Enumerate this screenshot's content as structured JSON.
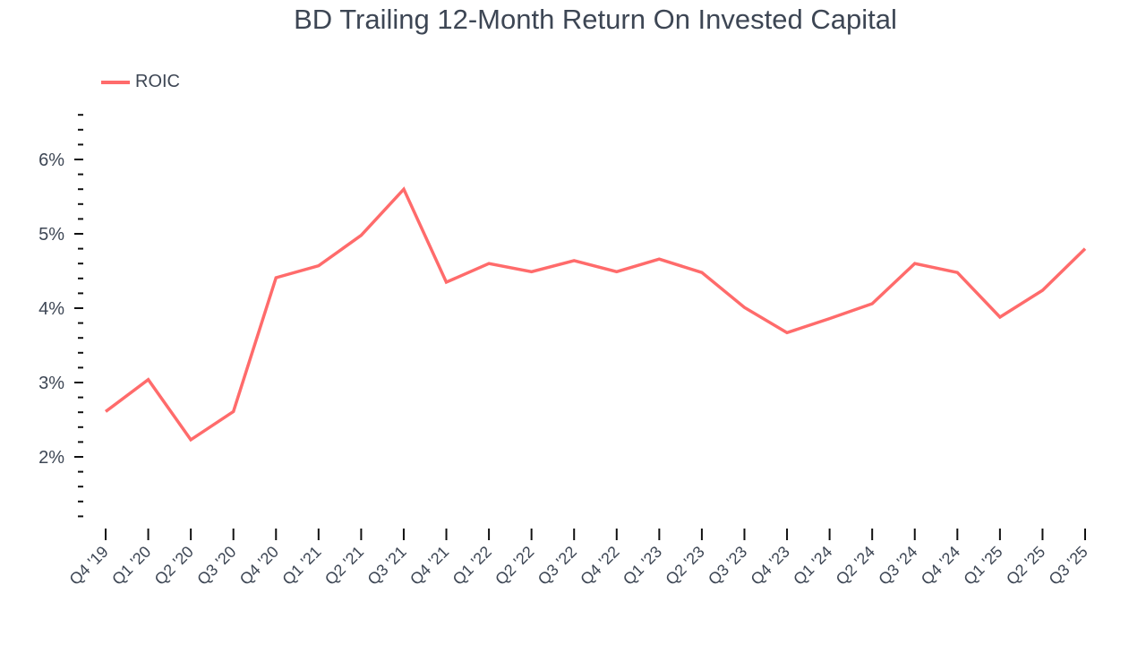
{
  "title": "BD Trailing 12-Month Return On Invested Capital",
  "legend": {
    "label": "ROIC",
    "color": "#ff6b6b"
  },
  "chart_data": {
    "type": "line",
    "title": "BD Trailing 12-Month Return On Invested Capital",
    "xlabel": "",
    "ylabel": "",
    "ylim": [
      1.2,
      6.6
    ],
    "yticks": [
      "2%",
      "3%",
      "4%",
      "5%",
      "6%"
    ],
    "grid": false,
    "legend_position": "top-left",
    "categories": [
      "Q4 '19",
      "Q1 '20",
      "Q2 '20",
      "Q3 '20",
      "Q4 '20",
      "Q1 '21",
      "Q2 '21",
      "Q3 '21",
      "Q4 '21",
      "Q1 '22",
      "Q2 '22",
      "Q3 '22",
      "Q4 '22",
      "Q1 '23",
      "Q2 '23",
      "Q3 '23",
      "Q4 '23",
      "Q1 '24",
      "Q2 '24",
      "Q3 '24",
      "Q4 '24",
      "Q1 '25",
      "Q2 '25",
      "Q3 '25"
    ],
    "series": [
      {
        "name": "ROIC",
        "color": "#ff6b6b",
        "values": [
          2.61,
          3.04,
          2.23,
          2.61,
          4.41,
          4.57,
          4.98,
          5.6,
          4.35,
          4.6,
          4.49,
          4.64,
          4.49,
          4.66,
          4.48,
          4.01,
          3.67,
          3.86,
          4.06,
          4.6,
          4.48,
          3.88,
          4.24,
          4.8
        ]
      }
    ]
  }
}
